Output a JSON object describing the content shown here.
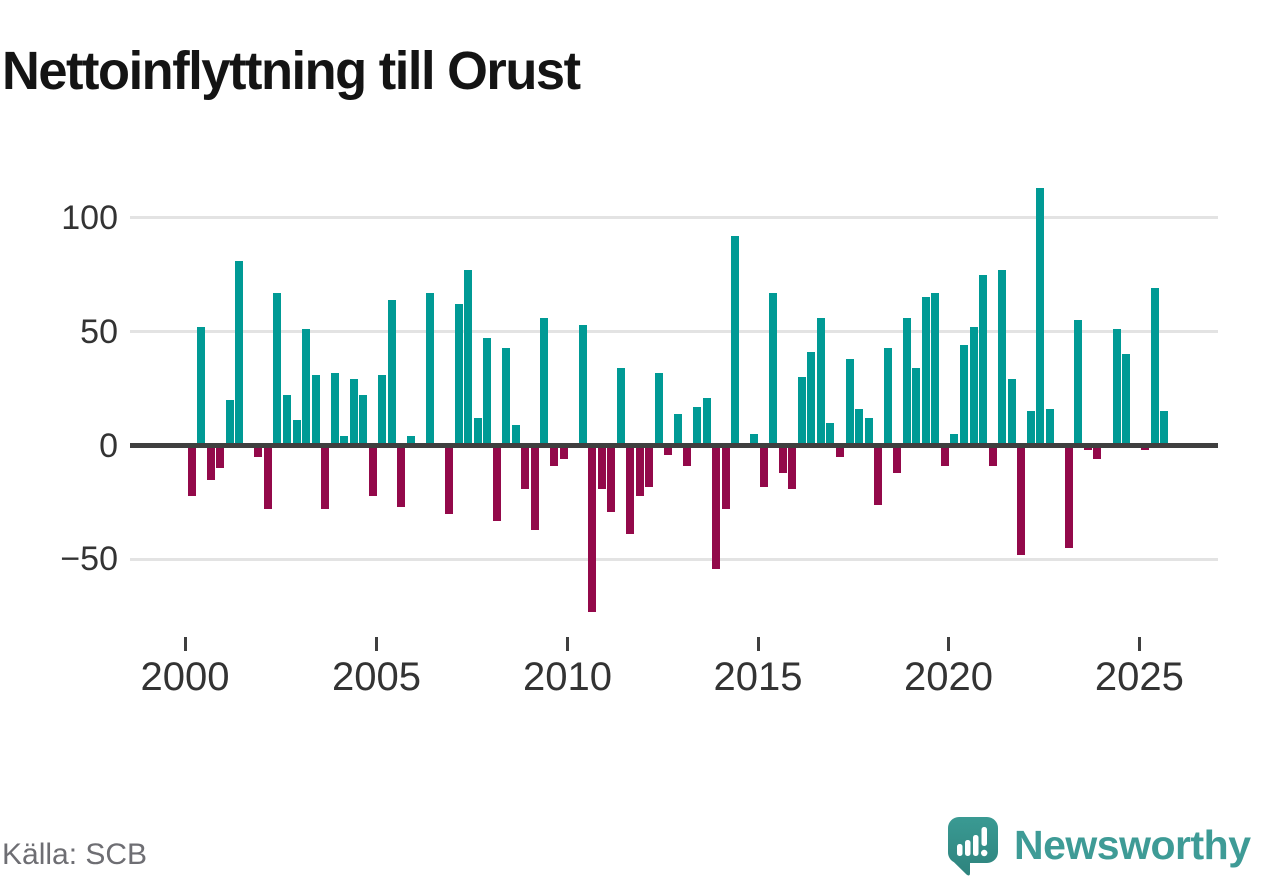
{
  "title": "Nettoinflyttning till Orust",
  "footer": {
    "source": "Källa: SCB",
    "brand": "Newsworthy"
  },
  "colors": {
    "positive": "#009a95",
    "negative": "#93094a",
    "gridline": "#e3e3e3",
    "zero_line": "#3f3f3f",
    "axis_text": "#333333",
    "source_text": "#6e6e73",
    "brand_teal": "#3e9b96"
  },
  "chart_data": {
    "type": "bar",
    "title": "Nettoinflyttning till Orust",
    "frequency": "quarterly",
    "x_start": "2000-Q1",
    "x_end": "2025-Q3",
    "xlabel": "",
    "ylabel": "",
    "ylim": [
      -80,
      120
    ],
    "grid": true,
    "y_ticks": [
      100,
      50,
      0,
      -50
    ],
    "y_tick_labels": [
      "100",
      "50",
      "0",
      "−50"
    ],
    "x_tick_years": [
      "2000",
      "2005",
      "2010",
      "2015",
      "2020",
      "2025"
    ],
    "values": [
      -22,
      52,
      -15,
      -10,
      20,
      81,
      0,
      -5,
      -28,
      67,
      22,
      11,
      51,
      31,
      -28,
      32,
      4,
      29,
      22,
      -22,
      31,
      64,
      -27,
      4,
      0,
      67,
      0,
      -30,
      62,
      77,
      12,
      47,
      -33,
      43,
      9,
      -19,
      -37,
      56,
      -9,
      -6,
      0,
      53,
      -73,
      -19,
      -29,
      34,
      -39,
      -22,
      -18,
      32,
      -4,
      14,
      -9,
      17,
      21,
      -54,
      -28,
      92,
      0,
      5,
      -18,
      67,
      -12,
      -19,
      30,
      41,
      56,
      10,
      -5,
      38,
      16,
      12,
      -26,
      43,
      -12,
      56,
      34,
      65,
      67,
      -9,
      5,
      44,
      52,
      75,
      -9,
      77,
      29,
      -48,
      15,
      113,
      16,
      0,
      -45,
      55,
      -2,
      -6,
      0,
      51,
      40,
      0,
      -2,
      69,
      15
    ]
  },
  "layout_note": "positive bars teal, negative bars dark magenta"
}
